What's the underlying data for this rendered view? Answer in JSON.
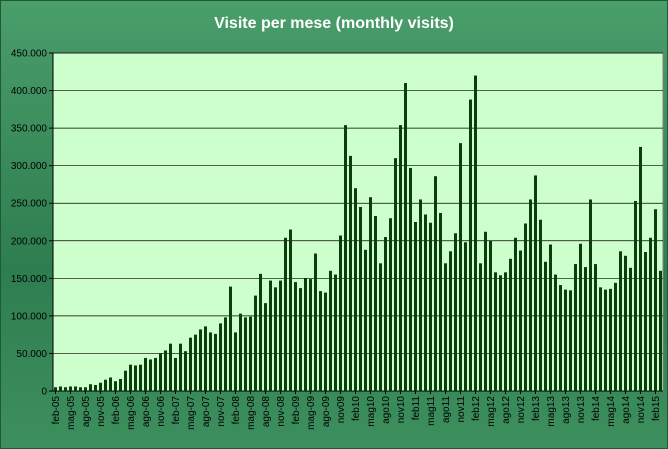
{
  "chart_data": {
    "type": "bar",
    "title": "Visite per mese (monthly visits)",
    "xlabel": "",
    "ylabel": "",
    "ylim": [
      0,
      450000
    ],
    "yticks": [
      "0",
      "50.000",
      "100.000",
      "150.000",
      "200.000",
      "250.000",
      "300.000",
      "350.000",
      "400.000",
      "450.000"
    ],
    "grid": true,
    "legend": "none",
    "colors": {
      "bar": "#0b3d0b",
      "plot_bg": "#ccffcc",
      "frame": "#3a8a5a",
      "title": "#ffffff"
    },
    "tick_labels": [
      "feb-05",
      "mag-05",
      "ago-05",
      "nov-05",
      "feb-06",
      "mag-06",
      "ago-06",
      "nov-06",
      "feb-07",
      "mag-07",
      "ago-07",
      "nov-07",
      "feb-08",
      "mag-08",
      "ago-08",
      "nov-08",
      "feb-09",
      "mag-09",
      "ago-09",
      "nov09",
      "feb10",
      "mag10",
      "ago10",
      "nov10",
      "feb11",
      "mag11",
      "ago11",
      "nov11",
      "feb12",
      "mag12",
      "ago12",
      "nov12",
      "feb13",
      "mag13",
      "ago13",
      "nov13",
      "feb14",
      "mag14",
      "ago14",
      "nov14",
      "feb15"
    ],
    "values": [
      5000,
      6000,
      5000,
      6000,
      6000,
      5000,
      5000,
      9000,
      8000,
      11000,
      15000,
      18000,
      13000,
      16000,
      27000,
      35000,
      34000,
      35000,
      44000,
      42000,
      44000,
      50000,
      54000,
      63000,
      44000,
      63000,
      53000,
      71000,
      75000,
      82000,
      86000,
      78000,
      76000,
      90000,
      98000,
      139000,
      78000,
      103000,
      98000,
      99000,
      127000,
      156000,
      117000,
      147000,
      138000,
      147000,
      204000,
      215000,
      145000,
      137000,
      150000,
      149000,
      183000,
      133000,
      131000,
      160000,
      155000,
      207000,
      354000,
      313000,
      270000,
      245000,
      188000,
      258000,
      233000,
      170000,
      205000,
      230000,
      310000,
      354000,
      410000,
      297000,
      225000,
      255000,
      235000,
      224000,
      286000,
      237000,
      170000,
      186000,
      210000,
      330000,
      198000,
      388000,
      420000,
      170000,
      212000,
      200000,
      158000,
      154000,
      158000,
      176000,
      204000,
      187000,
      223000,
      255000,
      287000,
      228000,
      172000,
      195000,
      155000,
      141000,
      135000,
      134000,
      169000,
      196000,
      165000,
      255000,
      169000,
      138000,
      135000,
      136000,
      144000,
      186000,
      180000,
      164000,
      253000,
      325000,
      185000,
      204000,
      242000,
      160000
    ]
  }
}
